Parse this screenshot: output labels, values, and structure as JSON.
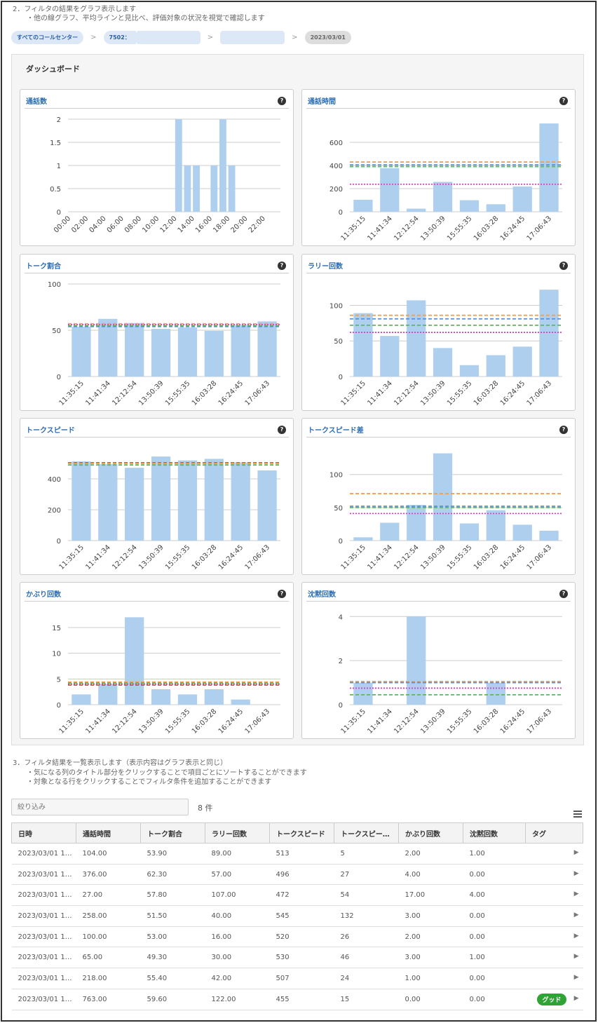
{
  "notes": {
    "section2": "2．フィルタの結果をグラフ表示します",
    "section2_sub": "・他の線グラフ、平均ラインと見比べ、評価対象の状況を視覚で確認します",
    "section3": "3．フィルタ結果を一覧表示します（表示内容はグラフ表示と同じ）",
    "section3_sub1": "・気になる列のタイトル部分をクリックすることで項目ごとにソートすることができます",
    "section3_sub2": "・対象となる行をクリックすることでフィルタ条件を追加することができます"
  },
  "breadcrumb": {
    "root": "すべてのコールセンター",
    "center": "7502：",
    "sep": ">",
    "date": "2023/03/01"
  },
  "dashboard": {
    "title": "ダッシュボード",
    "help": "?"
  },
  "colors": {
    "bar": "#aed0ee",
    "grid": "#cccccc",
    "orange": "#f0a050",
    "green": "#5cb85c",
    "magenta": "#e040c0",
    "blue": "#5a8fd8",
    "red": "#d9534f",
    "tag": "#2fa335"
  },
  "chart_data": [
    {
      "type": "bar",
      "title": "通話数",
      "categories": [
        "00",
        "01",
        "02",
        "03",
        "04",
        "05",
        "06",
        "07",
        "08",
        "09",
        "10",
        "11",
        "12",
        "13",
        "14",
        "15",
        "16",
        "17",
        "18",
        "19",
        "20",
        "21",
        "22",
        "23"
      ],
      "tick_labels": [
        "00:00",
        "02:00",
        "04:00",
        "06:00",
        "08:00",
        "10:00",
        "12:00",
        "14:00",
        "16:00",
        "18:00",
        "20:00",
        "22:00"
      ],
      "values": [
        0,
        0,
        0,
        0,
        0,
        0,
        0,
        0,
        0,
        0,
        0,
        0,
        2,
        1,
        1,
        0,
        1,
        2,
        1,
        0,
        0,
        0,
        0,
        0
      ],
      "ylim": [
        0,
        2
      ],
      "yticks": [
        "0",
        "0.5",
        "1",
        "1.5",
        "2"
      ],
      "ytick_values": [
        0,
        0.5,
        1,
        1.5,
        2
      ]
    },
    {
      "type": "bar",
      "title": "通話時間",
      "categories": [
        "11:35:15",
        "11:41:34",
        "12:12:54",
        "13:50:39",
        "15:55:35",
        "16:03:28",
        "16:24:45",
        "17:06:43"
      ],
      "values": [
        104,
        376,
        27,
        258,
        100,
        65,
        218,
        763
      ],
      "ylim": [
        0,
        800
      ],
      "yticks": [
        "0",
        "200",
        "400",
        "600"
      ],
      "ytick_values": [
        0,
        200,
        400,
        600
      ],
      "reference_lines": [
        {
          "value": 430,
          "color": "orange"
        },
        {
          "value": 405,
          "color": "blue"
        },
        {
          "value": 390,
          "color": "green"
        },
        {
          "value": 238,
          "color": "magenta"
        }
      ]
    },
    {
      "type": "bar",
      "title": "トーク割合",
      "categories": [
        "11:35:15",
        "11:41:34",
        "12:12:54",
        "13:50:39",
        "15:55:35",
        "16:03:28",
        "16:24:45",
        "17:06:43"
      ],
      "values": [
        53.9,
        62.3,
        57.8,
        51.5,
        53,
        49.3,
        55.4,
        59.6
      ],
      "ylim": [
        0,
        100
      ],
      "yticks": [
        "0",
        "50",
        "100"
      ],
      "ytick_values": [
        0,
        50,
        100
      ],
      "reference_lines": [
        {
          "value": 57,
          "color": "orange"
        },
        {
          "value": 56,
          "color": "magenta"
        },
        {
          "value": 55,
          "color": "green"
        },
        {
          "value": 54,
          "color": "blue"
        }
      ]
    },
    {
      "type": "bar",
      "title": "ラリー回数",
      "categories": [
        "11:35:15",
        "11:41:34",
        "12:12:54",
        "13:50:39",
        "15:55:35",
        "16:03:28",
        "16:24:45",
        "17:06:43"
      ],
      "values": [
        89,
        57,
        107,
        40,
        16,
        30,
        42,
        122
      ],
      "ylim": [
        0,
        130
      ],
      "yticks": [
        "0",
        "50",
        "100"
      ],
      "ytick_values": [
        0,
        50,
        100
      ],
      "reference_lines": [
        {
          "value": 86,
          "color": "orange"
        },
        {
          "value": 81,
          "color": "blue"
        },
        {
          "value": 72,
          "color": "green"
        },
        {
          "value": 62,
          "color": "magenta"
        }
      ]
    },
    {
      "type": "bar",
      "title": "トークスピード",
      "categories": [
        "11:35:15",
        "11:41:34",
        "12:12:54",
        "13:50:39",
        "15:55:35",
        "16:03:28",
        "16:24:45",
        "17:06:43"
      ],
      "values": [
        513,
        496,
        472,
        545,
        520,
        530,
        507,
        455
      ],
      "ylim": [
        0,
        600
      ],
      "yticks": [
        "0",
        "200",
        "400"
      ],
      "ytick_values": [
        0,
        200,
        400
      ],
      "reference_lines": [
        {
          "value": 505,
          "color": "red"
        },
        {
          "value": 500,
          "color": "orange"
        },
        {
          "value": 490,
          "color": "green"
        }
      ]
    },
    {
      "type": "bar",
      "title": "トークスピード差",
      "categories": [
        "11:35:15",
        "11:41:34",
        "12:12:54",
        "13:50:39",
        "15:55:35",
        "16:03:28",
        "16:24:45",
        "17:06:43"
      ],
      "values": [
        5,
        27,
        54,
        132,
        26,
        46,
        24,
        15
      ],
      "ylim": [
        0,
        140
      ],
      "yticks": [
        "0",
        "50",
        "100"
      ],
      "ytick_values": [
        0,
        50,
        100
      ],
      "reference_lines": [
        {
          "value": 71,
          "color": "orange"
        },
        {
          "value": 52,
          "color": "blue"
        },
        {
          "value": 50,
          "color": "green"
        },
        {
          "value": 41,
          "color": "magenta"
        }
      ]
    },
    {
      "type": "bar",
      "title": "かぶり回数",
      "categories": [
        "11:35:15",
        "11:41:34",
        "12:12:54",
        "13:50:39",
        "15:55:35",
        "16:03:28",
        "16:24:45",
        "17:06:43"
      ],
      "values": [
        2,
        4,
        17,
        3,
        2,
        3,
        1,
        0
      ],
      "ylim": [
        0,
        18
      ],
      "yticks": [
        "0",
        "5",
        "10",
        "15"
      ],
      "ytick_values": [
        0,
        5,
        10,
        15
      ],
      "reference_lines": [
        {
          "value": 4.4,
          "color": "orange"
        },
        {
          "value": 4.2,
          "color": "green"
        },
        {
          "value": 4,
          "color": "magenta"
        },
        {
          "value": 3.8,
          "color": "red"
        }
      ]
    },
    {
      "type": "bar",
      "title": "沈黙回数",
      "categories": [
        "11:35:15",
        "11:41:34",
        "12:12:54",
        "13:50:39",
        "15:55:35",
        "16:03:28",
        "16:24:45",
        "17:06:43"
      ],
      "values": [
        1,
        0,
        4,
        0,
        0,
        1,
        0,
        0
      ],
      "ylim": [
        0,
        4.2
      ],
      "yticks": [
        "0",
        "2",
        "4"
      ],
      "ytick_values": [
        0,
        2,
        4
      ],
      "reference_lines": [
        {
          "value": 1.05,
          "color": "orange"
        },
        {
          "value": 1,
          "color": "blue"
        },
        {
          "value": 0.75,
          "color": "magenta"
        },
        {
          "value": 0.45,
          "color": "green"
        }
      ]
    }
  ],
  "filter": {
    "placeholder": "絞り込み",
    "count": "8 件"
  },
  "table": {
    "columns": [
      "日時",
      "通話時間",
      "トーク割合",
      "ラリー回数",
      "トークスピード",
      "トークスピー…",
      "かぶり回数",
      "沈黙回数",
      "タグ"
    ],
    "rows": [
      [
        "2023/03/01 1…",
        "104.00",
        "53.90",
        "89.00",
        "513",
        "5",
        "2.00",
        "1.00",
        ""
      ],
      [
        "2023/03/01 1…",
        "376.00",
        "62.30",
        "57.00",
        "496",
        "27",
        "4.00",
        "0.00",
        ""
      ],
      [
        "2023/03/01 1…",
        "27.00",
        "57.80",
        "107.00",
        "472",
        "54",
        "17.00",
        "4.00",
        ""
      ],
      [
        "2023/03/01 1…",
        "258.00",
        "51.50",
        "40.00",
        "545",
        "132",
        "3.00",
        "0.00",
        ""
      ],
      [
        "2023/03/01 1…",
        "100.00",
        "53.00",
        "16.00",
        "520",
        "26",
        "2.00",
        "0.00",
        ""
      ],
      [
        "2023/03/01 1…",
        "65.00",
        "49.30",
        "30.00",
        "530",
        "46",
        "3.00",
        "1.00",
        ""
      ],
      [
        "2023/03/01 1…",
        "218.00",
        "55.40",
        "42.00",
        "507",
        "24",
        "1.00",
        "0.00",
        ""
      ],
      [
        "2023/03/01 1…",
        "763.00",
        "59.60",
        "122.00",
        "455",
        "15",
        "0.00",
        "0.00",
        "グッド"
      ]
    ],
    "row_icon": "play-arrow-icon"
  }
}
